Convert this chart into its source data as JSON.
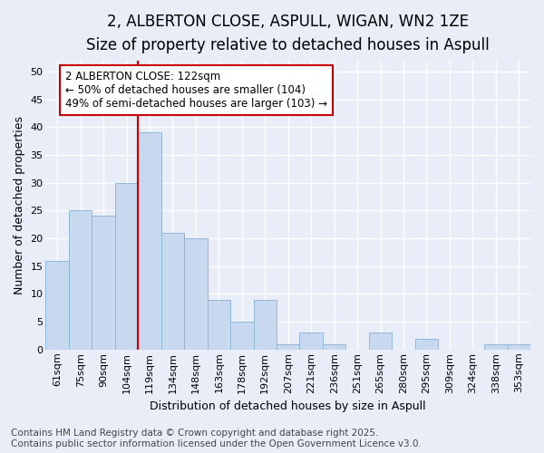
{
  "title_line1": "2, ALBERTON CLOSE, ASPULL, WIGAN, WN2 1ZE",
  "title_line2": "Size of property relative to detached houses in Aspull",
  "xlabel": "Distribution of detached houses by size in Aspull",
  "ylabel": "Number of detached properties",
  "categories": [
    "61sqm",
    "75sqm",
    "90sqm",
    "104sqm",
    "119sqm",
    "134sqm",
    "148sqm",
    "163sqm",
    "178sqm",
    "192sqm",
    "207sqm",
    "221sqm",
    "236sqm",
    "251sqm",
    "265sqm",
    "280sqm",
    "295sqm",
    "309sqm",
    "324sqm",
    "338sqm",
    "353sqm"
  ],
  "values": [
    16,
    25,
    24,
    30,
    39,
    21,
    20,
    9,
    5,
    9,
    1,
    3,
    1,
    0,
    3,
    0,
    2,
    0,
    0,
    1,
    1
  ],
  "bar_color": "#c8d8ee",
  "bar_edge_color": "#90b8d8",
  "bar_edge_width": 0.7,
  "vline_x_index": 4.0,
  "vline_color": "#cc0000",
  "vline_linewidth": 1.5,
  "annotation_text": "2 ALBERTON CLOSE: 122sqm\n← 50% of detached houses are smaller (104)\n49% of semi-detached houses are larger (103) →",
  "annotation_box_color": "#ffffff",
  "annotation_box_edge": "#cc0000",
  "ylim": [
    0,
    52
  ],
  "yticks": [
    0,
    5,
    10,
    15,
    20,
    25,
    30,
    35,
    40,
    45,
    50
  ],
  "background_color": "#e8edf8",
  "grid_color": "#ffffff",
  "footer_line1": "Contains HM Land Registry data © Crown copyright and database right 2025.",
  "footer_line2": "Contains public sector information licensed under the Open Government Licence v3.0.",
  "title_fontsize": 12,
  "subtitle_fontsize": 10,
  "axis_label_fontsize": 9,
  "tick_fontsize": 8,
  "annotation_fontsize": 8.5,
  "footer_fontsize": 7.5
}
